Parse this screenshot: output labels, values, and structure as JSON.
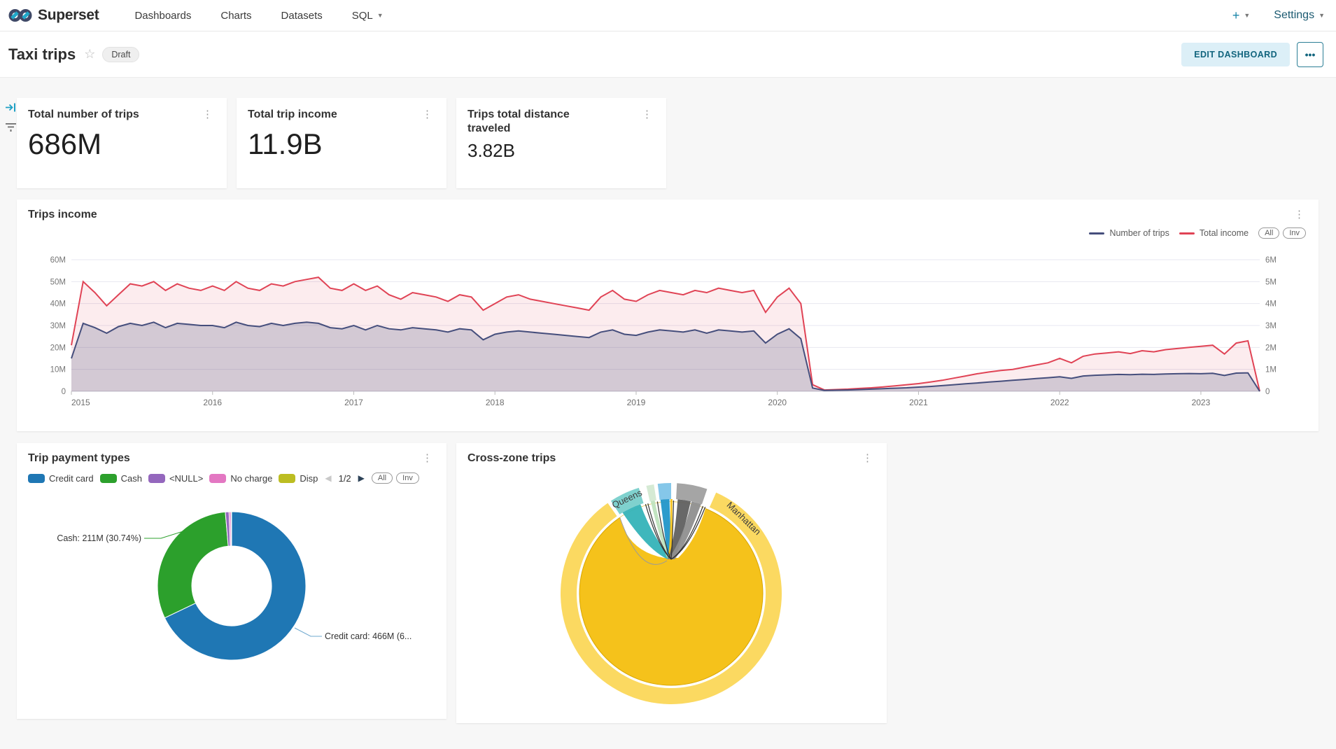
{
  "nav": {
    "brand": "Superset",
    "items": [
      {
        "label": "Dashboards",
        "caret": false
      },
      {
        "label": "Charts",
        "caret": false
      },
      {
        "label": "Datasets",
        "caret": false
      },
      {
        "label": "SQL",
        "caret": true
      }
    ],
    "right": {
      "plus_label": "+",
      "settings_label": "Settings"
    }
  },
  "header": {
    "title": "Taxi trips",
    "status_badge": "Draft",
    "edit_button_label": "EDIT DASHBOARD",
    "more_button_label": "..."
  },
  "kpis": [
    {
      "title": "Total number of trips",
      "value": "686M"
    },
    {
      "title": "Total trip income",
      "value": "11.9B"
    },
    {
      "title": "Trips total distance traveled",
      "value": "3.82B"
    }
  ],
  "trips_income": {
    "title": "Trips income",
    "legend": [
      {
        "label": "Number of trips",
        "color": "#454e7c"
      },
      {
        "label": "Total income",
        "color": "#e04355"
      }
    ],
    "pills": [
      "All",
      "Inv"
    ],
    "chart_data": {
      "type": "area",
      "x_ticks": [
        "2015",
        "2016",
        "2017",
        "2018",
        "2019",
        "2020",
        "2021",
        "2022",
        "2023"
      ],
      "y_left_ticks": [
        "0",
        "10M",
        "20M",
        "30M",
        "40M",
        "50M",
        "60M"
      ],
      "y_right_ticks": [
        "0",
        "1M",
        "2M",
        "3M",
        "4M",
        "5M",
        "6M"
      ],
      "y_left_max": 60,
      "y_right_max": 6,
      "grid": true,
      "legend_position": "top-right",
      "series": [
        {
          "name": "Number of trips",
          "axis": "left",
          "color": "#454e7c",
          "values": [
            15,
            31,
            29,
            26.5,
            29.5,
            31,
            30,
            31.5,
            29,
            31,
            30.5,
            30,
            30,
            29,
            31.5,
            30,
            29.5,
            31,
            30,
            31,
            31.5,
            31,
            29,
            28.5,
            30,
            28,
            30,
            28.5,
            28,
            29,
            28.5,
            28,
            27,
            28.5,
            28,
            23.5,
            26,
            27,
            27.5,
            27,
            26.5,
            26,
            25.5,
            25,
            24.5,
            27,
            28,
            26,
            25.5,
            27,
            28,
            27.5,
            27,
            28,
            26.5,
            28,
            27.5,
            27,
            27.5,
            22,
            26,
            28.5,
            24,
            1.5,
            0.4,
            0.5,
            0.6,
            0.8,
            1,
            1.2,
            1.4,
            1.6,
            1.9,
            2.2,
            2.6,
            3,
            3.4,
            3.8,
            4.2,
            4.6,
            5,
            5.4,
            5.8,
            6.2,
            6.6,
            5.9,
            7,
            7.3,
            7.5,
            7.7,
            7.6,
            7.8,
            7.7,
            7.9,
            8,
            8.1,
            8,
            8.2,
            7.2,
            8.3,
            8.4,
            0
          ]
        },
        {
          "name": "Total income",
          "axis": "right",
          "color": "#e04355",
          "values": [
            2.1,
            5,
            4.5,
            3.9,
            4.4,
            4.9,
            4.8,
            5,
            4.6,
            4.9,
            4.7,
            4.6,
            4.8,
            4.6,
            5,
            4.7,
            4.6,
            4.9,
            4.8,
            5,
            5.1,
            5.2,
            4.7,
            4.6,
            4.9,
            4.6,
            4.8,
            4.4,
            4.2,
            4.5,
            4.4,
            4.3,
            4.1,
            4.4,
            4.3,
            3.7,
            4,
            4.3,
            4.4,
            4.2,
            4.1,
            4,
            3.9,
            3.8,
            3.7,
            4.3,
            4.6,
            4.2,
            4.1,
            4.4,
            4.6,
            4.5,
            4.4,
            4.6,
            4.5,
            4.7,
            4.6,
            4.5,
            4.6,
            3.6,
            4.3,
            4.7,
            4,
            0.3,
            0.06,
            0.08,
            0.1,
            0.13,
            0.16,
            0.2,
            0.25,
            0.3,
            0.35,
            0.42,
            0.5,
            0.6,
            0.7,
            0.8,
            0.88,
            0.95,
            1,
            1.1,
            1.2,
            1.3,
            1.5,
            1.3,
            1.6,
            1.7,
            1.75,
            1.8,
            1.72,
            1.85,
            1.8,
            1.9,
            1.95,
            2,
            2.05,
            2.1,
            1.7,
            2.2,
            2.3,
            0
          ]
        }
      ]
    }
  },
  "payment_types": {
    "title": "Trip payment types",
    "legend": [
      {
        "label": "Credit card",
        "color": "#1f77b4"
      },
      {
        "label": "Cash",
        "color": "#2ca02c"
      },
      {
        "label": "<NULL>",
        "color": "#9467bd"
      },
      {
        "label": "No charge",
        "color": "#e377c2"
      },
      {
        "label": "Disp",
        "color": "#bcbd22"
      }
    ],
    "pagination": {
      "prev": "◀",
      "page": "1/2",
      "next": "▶"
    },
    "pills": [
      "All",
      "Inv"
    ],
    "callouts": {
      "cash": "Cash: 211M (30.74%)",
      "credit": "Credit card: 466M (6..."
    },
    "chart_data": {
      "type": "pie",
      "donut": true,
      "slices": [
        {
          "label": "Credit card",
          "display": "466M",
          "pct": 67.9,
          "color": "#1f77b4"
        },
        {
          "label": "Cash",
          "display": "211M",
          "pct": 30.74,
          "color": "#2ca02c"
        },
        {
          "label": "<NULL>",
          "pct": 0.8,
          "color": "#9467bd"
        },
        {
          "label": "No charge",
          "pct": 0.4,
          "color": "#e377c2"
        },
        {
          "label": "Disp",
          "pct": 0.16,
          "color": "#bcbd22"
        }
      ]
    }
  },
  "cross_zone": {
    "title": "Cross-zone trips",
    "chart_data": {
      "type": "chord",
      "ring_outer_color": "#fbd961",
      "inner_color": "#f5c21b",
      "inner_stroke": "#d8a603",
      "arcs": [
        {
          "label": "Manhattan",
          "from": 24,
          "to": 325,
          "color": "#fbd961"
        },
        {
          "label": "Queens",
          "from": -33,
          "to": -17,
          "color": "#7fd1ce"
        },
        {
          "label": "",
          "from": -13,
          "to": -9,
          "color": "#d5ead4"
        },
        {
          "label": "",
          "from": -7,
          "to": 0,
          "color": "#85c7e9"
        },
        {
          "label": "",
          "from": 3,
          "to": 19,
          "color": "#a5a5a5"
        }
      ],
      "ribbons": [
        {
          "from": -31,
          "to": -19,
          "color": "#35b3b8"
        },
        {
          "from": -12.5,
          "to": -10,
          "color": "#bfe3be"
        },
        {
          "from": -6.5,
          "to": -1,
          "color": "#2196c9"
        },
        {
          "from": -0.5,
          "to": 0.8,
          "color": "#f5c21b"
        },
        {
          "from": 4,
          "to": 12,
          "color": "#606060"
        },
        {
          "from": 12.5,
          "to": 18.5,
          "color": "#8f8f8f"
        }
      ],
      "thin_lines": [
        -16,
        -14.5,
        -8.5,
        1.5,
        20,
        21.5
      ],
      "labels": [
        {
          "text": "Queens",
          "angle": -25
        },
        {
          "text": "Manhattan",
          "angle": 44
        }
      ]
    }
  }
}
